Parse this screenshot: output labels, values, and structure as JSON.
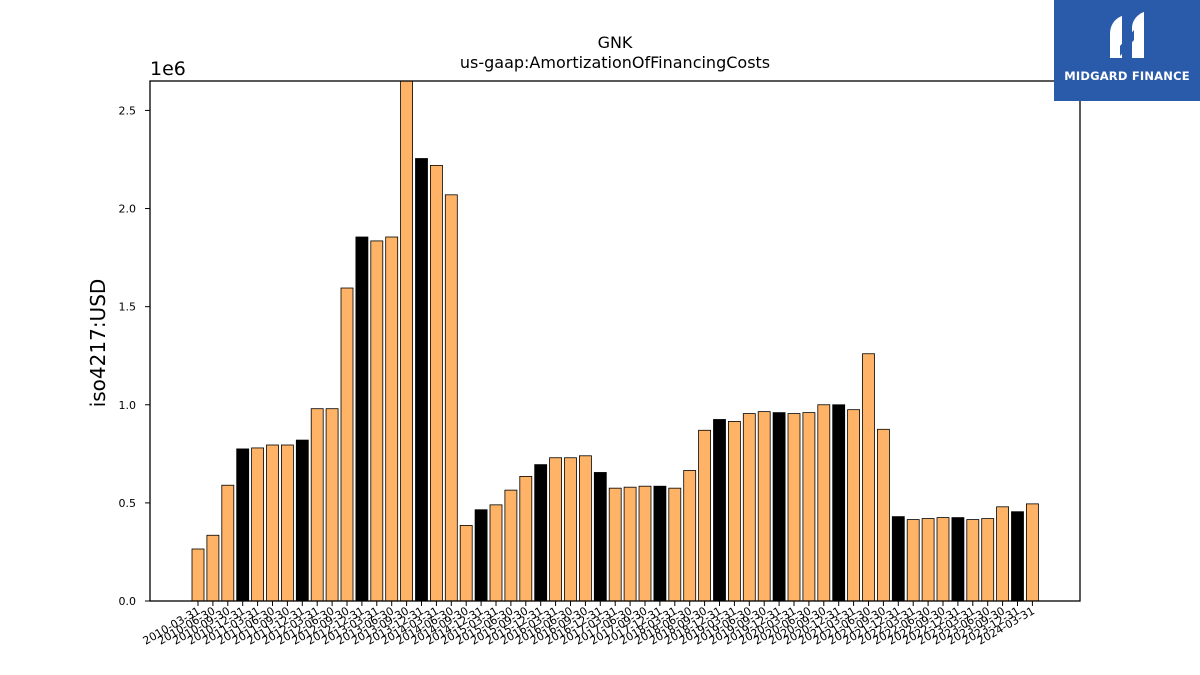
{
  "chart_data": {
    "type": "bar",
    "title": "GNK",
    "subtitle": "us-gaap:AmortizationOfFinancingCosts",
    "ylabel": "iso4217:USD",
    "xlabel": "",
    "y_offset_label": "1e6",
    "ylim": [
      0,
      2.65
    ],
    "y_ticks": [
      "0.0",
      "0.5",
      "1.0",
      "1.5",
      "2.0",
      "2.5"
    ],
    "grid": false,
    "colors": {
      "quarter": "#ffb366",
      "annual": "#000000",
      "edge": "#000000"
    },
    "categories": [
      "2010-03-31",
      "2010-06-30",
      "2010-09-30",
      "2010-12-31",
      "2011-03-31",
      "2011-06-30",
      "2011-09-30",
      "2011-12-31",
      "2012-03-31",
      "2012-06-30",
      "2012-09-30",
      "2012-12-31",
      "2013-03-31",
      "2013-06-30",
      "2013-09-30",
      "2013-12-31",
      "2014-03-31",
      "2014-06-30",
      "2014-09-30",
      "2014-12-31",
      "2015-03-31",
      "2015-06-30",
      "2015-09-30",
      "2015-12-31",
      "2016-03-31",
      "2016-06-30",
      "2016-09-30",
      "2016-12-31",
      "2017-03-31",
      "2017-06-30",
      "2017-09-30",
      "2017-12-31",
      "2018-03-31",
      "2018-06-30",
      "2018-09-30",
      "2018-12-31",
      "2019-03-31",
      "2019-06-30",
      "2019-09-30",
      "2019-12-31",
      "2020-03-31",
      "2020-06-30",
      "2020-09-30",
      "2020-12-31",
      "2021-03-31",
      "2021-06-30",
      "2021-09-30",
      "2021-12-31",
      "2022-03-31",
      "2022-06-30",
      "2022-09-30",
      "2022-12-31",
      "2023-03-31",
      "2023-06-30",
      "2023-09-30",
      "2023-12-31",
      "2024-03-31"
    ],
    "values": [
      0.265,
      0.335,
      0.59,
      0.775,
      0.78,
      0.795,
      0.795,
      0.82,
      0.98,
      0.98,
      1.595,
      1.855,
      1.835,
      1.855,
      2.66,
      2.255,
      2.22,
      2.07,
      0.385,
      0.465,
      0.49,
      0.565,
      0.635,
      0.695,
      0.73,
      0.73,
      0.74,
      0.655,
      0.575,
      0.58,
      0.585,
      0.585,
      0.575,
      0.665,
      0.87,
      0.925,
      0.915,
      0.955,
      0.965,
      0.96,
      0.955,
      0.96,
      1.0,
      1.0,
      0.975,
      1.26,
      0.875,
      0.43,
      0.415,
      0.42,
      0.425,
      0.425,
      0.415,
      0.42,
      0.48,
      0.455,
      0.495
    ],
    "annual": [
      false,
      false,
      false,
      true,
      false,
      false,
      false,
      true,
      false,
      false,
      false,
      true,
      false,
      false,
      false,
      true,
      false,
      false,
      false,
      true,
      false,
      false,
      false,
      true,
      false,
      false,
      false,
      true,
      false,
      false,
      false,
      true,
      false,
      false,
      false,
      true,
      false,
      false,
      false,
      true,
      false,
      false,
      false,
      true,
      false,
      false,
      false,
      true,
      false,
      false,
      false,
      true,
      false,
      false,
      false,
      true,
      false
    ]
  },
  "watermark": {
    "brand": "MIDGARD FINANCE",
    "icon": "midgard-logo-icon"
  }
}
